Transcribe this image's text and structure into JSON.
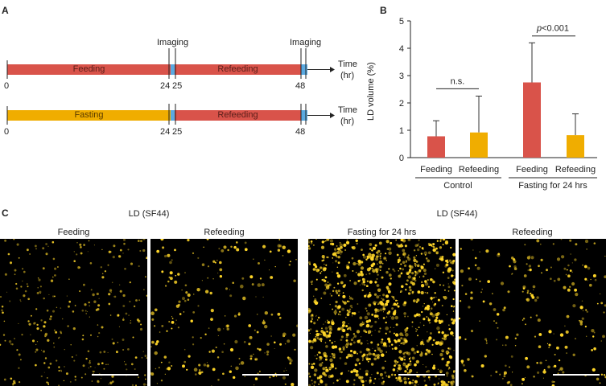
{
  "panel_a": {
    "label": "A",
    "imaging_1": "Imaging",
    "imaging_2": "Imaging",
    "row1": {
      "segment1": "Feeding",
      "segment2": "Refeeding"
    },
    "row2": {
      "segment1": "Fasting",
      "segment2": "Refeeding"
    },
    "time_label": "Time",
    "time_unit": "(hr)",
    "ticks": [
      "0",
      "24",
      "25",
      "48"
    ],
    "colors": {
      "feeding": "#d9534a",
      "fasting": "#f0ad00",
      "imaging": "#5aa9e0"
    }
  },
  "panel_b": {
    "label": "B",
    "chart_data": {
      "type": "bar",
      "ylabel": "LD volume (%)",
      "ylim": [
        0,
        5
      ],
      "yticks": [
        "0",
        "1",
        "2",
        "3",
        "4",
        "5"
      ],
      "categories": [
        "Feeding",
        "Refeeding",
        "Feeding",
        "Refeeding"
      ],
      "groups": [
        "Control",
        "Fasting for 24 hrs"
      ],
      "values": [
        0.78,
        0.92,
        2.75,
        0.82
      ],
      "error_upper": [
        1.35,
        2.25,
        4.2,
        1.6
      ],
      "colors": [
        "#d9534a",
        "#f0ad00",
        "#d9534a",
        "#f0ad00"
      ],
      "annotations": {
        "control": "n.s.",
        "fasting_p": "p",
        "fasting_rest": "<0.001"
      }
    }
  },
  "panel_c": {
    "label": "C",
    "group_title_1": "LD (SF44)",
    "group_title_2": "LD (SF44)",
    "images": [
      "Feeding",
      "Refeeding",
      "Fasting for 24 hrs",
      "Refeeding"
    ]
  }
}
